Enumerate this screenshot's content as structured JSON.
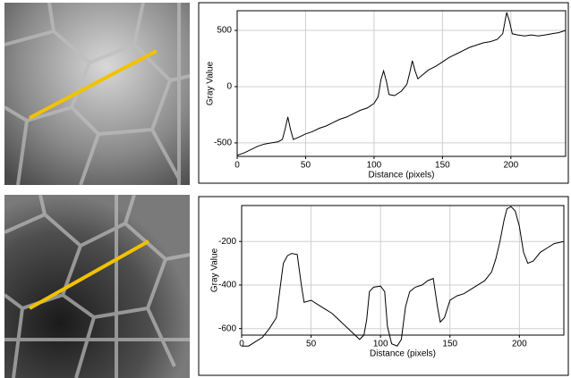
{
  "chart_data": [
    {
      "type": "line",
      "xlabel": "Distance (pixels)",
      "ylabel": "Gray Value",
      "color": "#000000",
      "grid": true,
      "xlim": [
        0,
        240
      ],
      "ylim": [
        -620,
        675
      ],
      "xticks": [
        0,
        50,
        100,
        150,
        200
      ],
      "yticks": [
        -500,
        0,
        500
      ],
      "x": [
        0,
        5,
        10,
        15,
        20,
        25,
        30,
        33,
        35,
        37,
        39,
        41,
        45,
        50,
        55,
        60,
        65,
        70,
        75,
        80,
        85,
        90,
        95,
        100,
        103,
        105,
        107,
        109,
        111,
        115,
        120,
        124,
        126,
        128,
        130,
        132,
        135,
        140,
        145,
        150,
        155,
        160,
        165,
        170,
        175,
        180,
        185,
        190,
        194,
        196,
        197,
        199,
        201,
        205,
        210,
        215,
        220,
        225,
        230,
        235,
        240
      ],
      "values": [
        -610,
        -590,
        -560,
        -530,
        -510,
        -500,
        -490,
        -470,
        -380,
        -270,
        -380,
        -470,
        -450,
        -420,
        -400,
        -370,
        -350,
        -320,
        -290,
        -270,
        -240,
        -210,
        -190,
        -150,
        -90,
        60,
        140,
        50,
        -70,
        -80,
        -40,
        20,
        120,
        230,
        140,
        70,
        100,
        150,
        180,
        220,
        260,
        290,
        320,
        350,
        370,
        390,
        400,
        420,
        470,
        600,
        660,
        580,
        470,
        460,
        450,
        460,
        450,
        460,
        470,
        480,
        500
      ]
    },
    {
      "type": "line",
      "xlabel": "Distance (pixels)",
      "ylabel": "Gray Value",
      "color": "#000000",
      "grid": true,
      "xlim": [
        0,
        232
      ],
      "ylim": [
        -630,
        -35
      ],
      "xticks": [
        0,
        50,
        100,
        150,
        200
      ],
      "yticks": [
        -600,
        -400,
        -200
      ],
      "x": [
        0,
        5,
        10,
        15,
        20,
        25,
        28,
        30,
        33,
        36,
        40,
        43,
        45,
        50,
        55,
        60,
        65,
        70,
        75,
        80,
        85,
        88,
        90,
        92,
        95,
        100,
        103,
        105,
        108,
        112,
        115,
        118,
        121,
        125,
        130,
        134,
        138,
        141,
        143,
        146,
        150,
        155,
        160,
        165,
        170,
        175,
        180,
        183,
        186,
        189,
        191,
        194,
        197,
        200,
        203,
        206,
        210,
        215,
        220,
        225,
        232
      ],
      "values": [
        -680,
        -680,
        -660,
        -640,
        -600,
        -550,
        -400,
        -300,
        -265,
        -255,
        -260,
        -400,
        -480,
        -470,
        -490,
        -510,
        -530,
        -560,
        -590,
        -620,
        -650,
        -630,
        -560,
        -430,
        -410,
        -405,
        -430,
        -590,
        -670,
        -680,
        -650,
        -500,
        -430,
        -410,
        -400,
        -380,
        -370,
        -500,
        -570,
        -550,
        -470,
        -450,
        -440,
        -420,
        -400,
        -380,
        -340,
        -280,
        -200,
        -100,
        -50,
        -40,
        -60,
        -130,
        -250,
        -300,
        -290,
        -250,
        -230,
        -210,
        -200
      ]
    }
  ]
}
